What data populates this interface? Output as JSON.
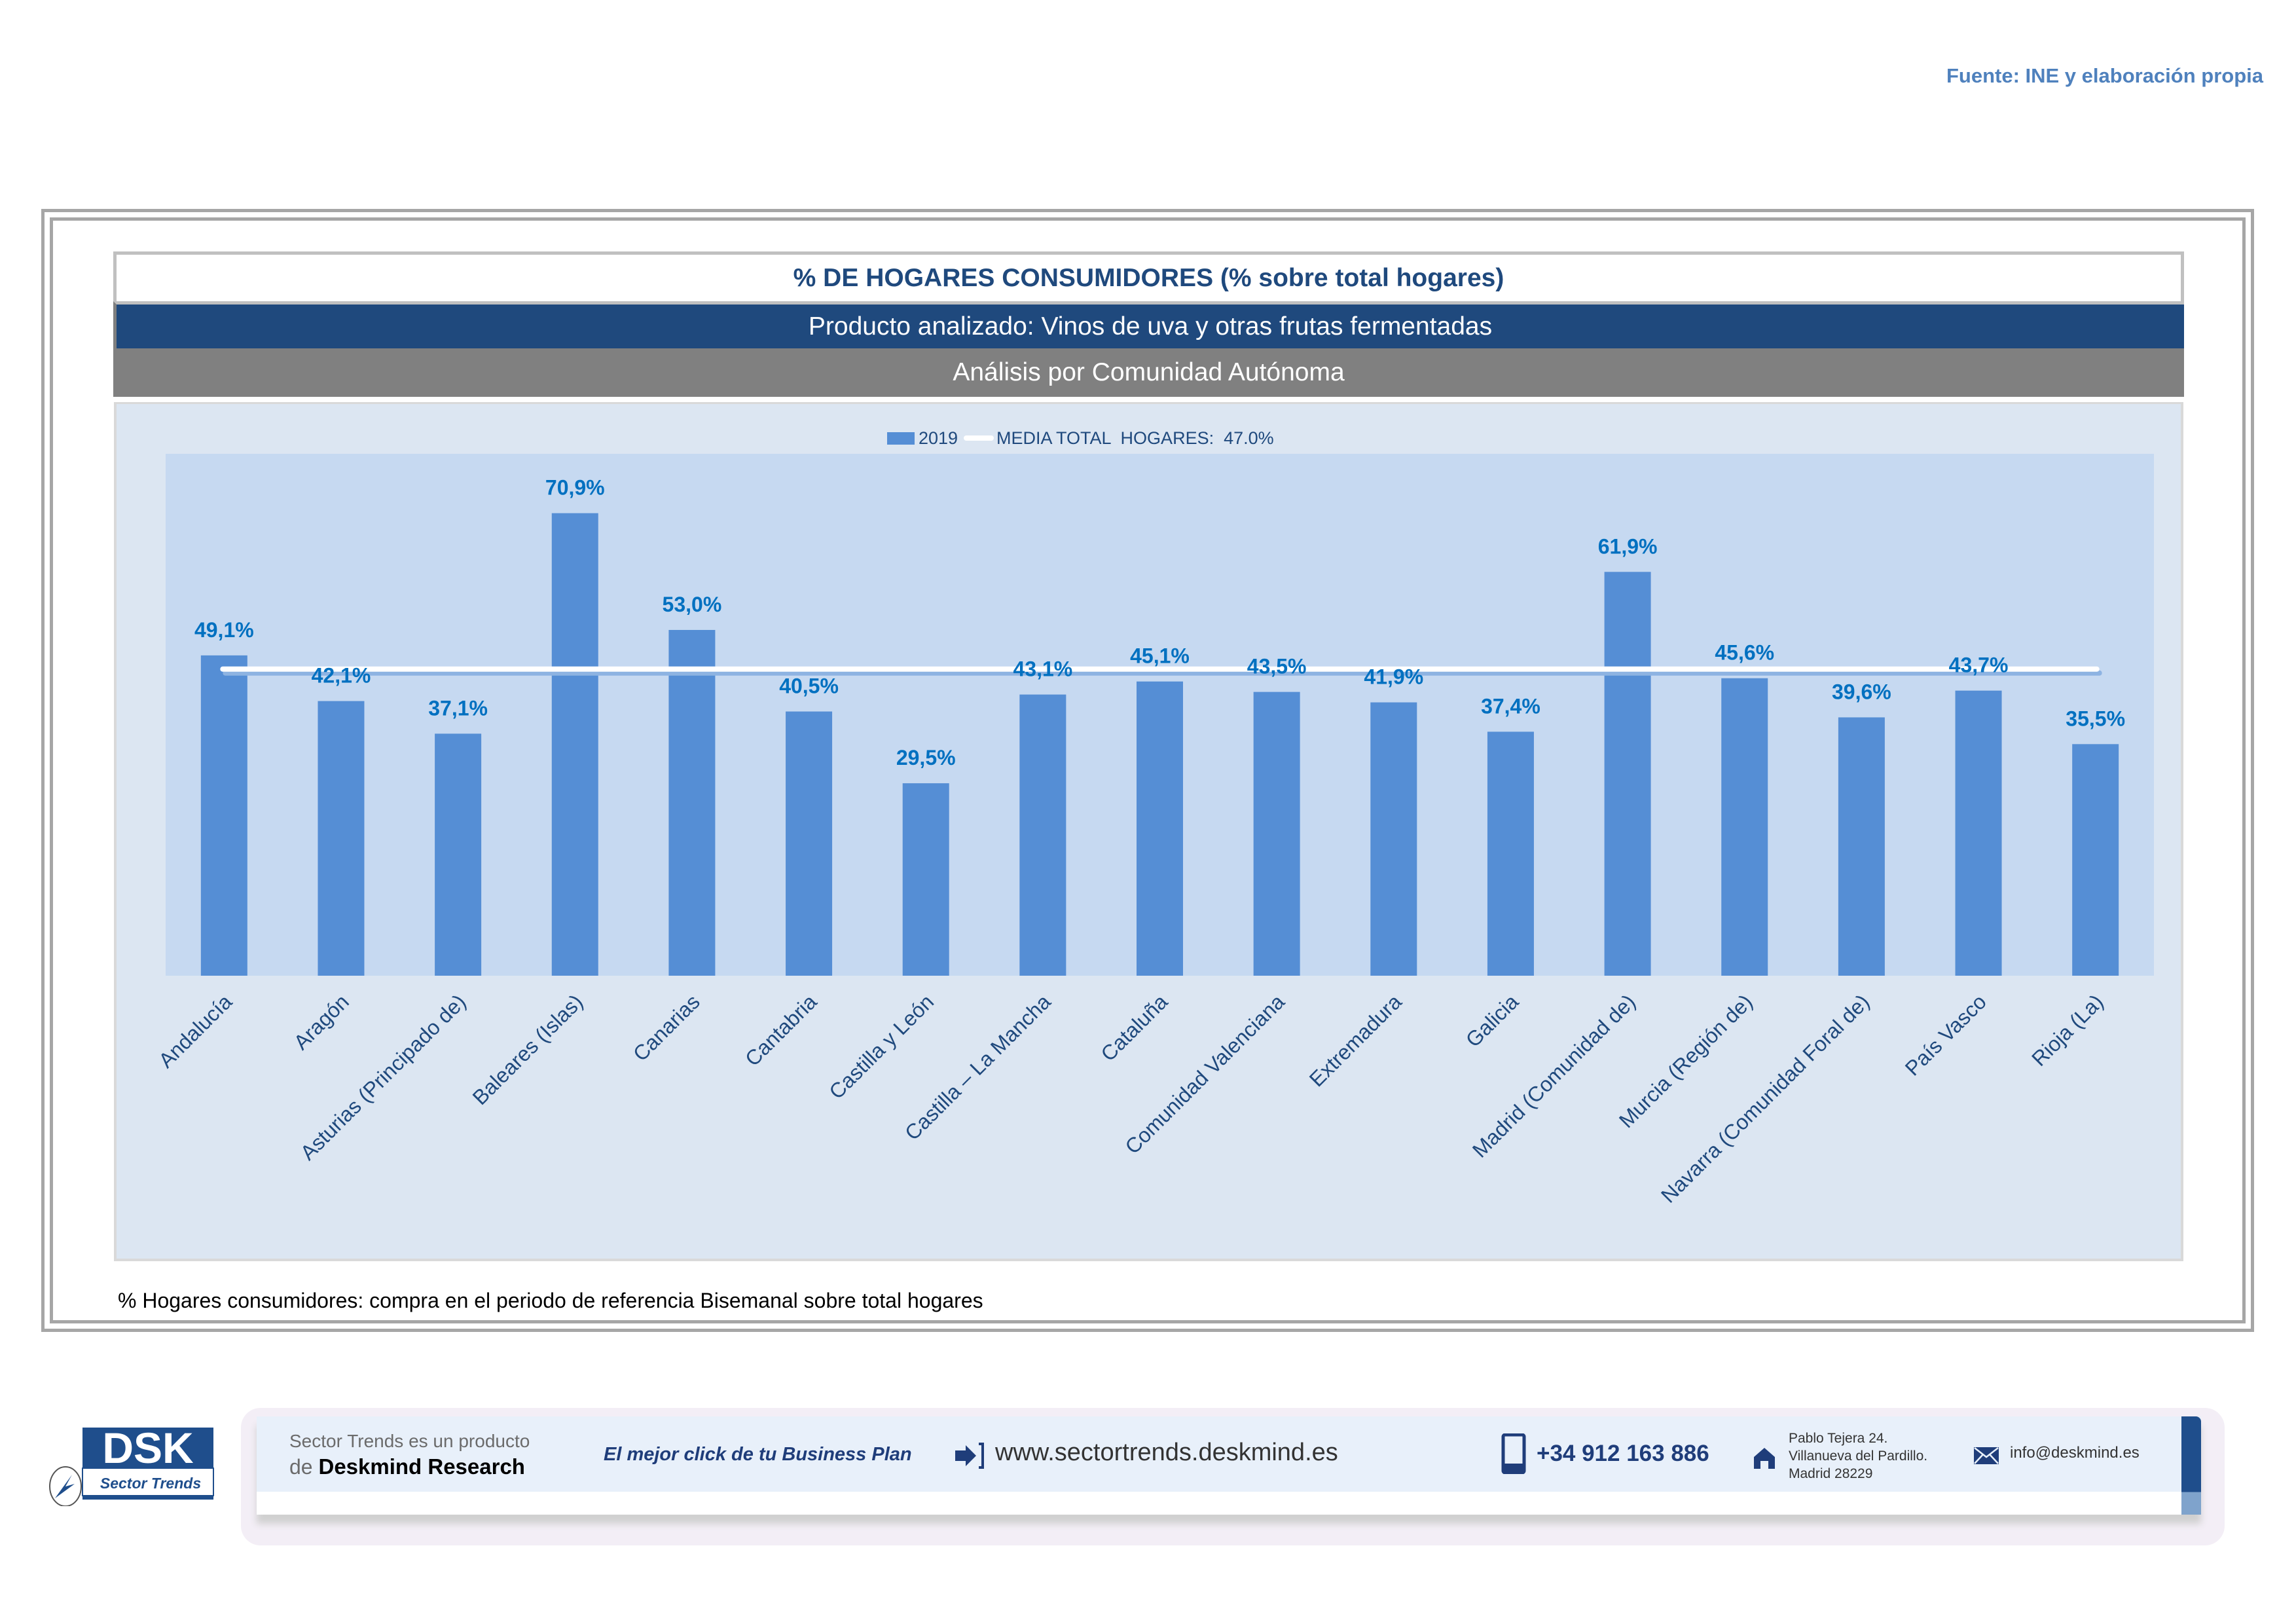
{
  "source": "Fuente: INE y elaboración propia",
  "header": {
    "title": "% DE HOGARES CONSUMIDORES (% sobre total hogares)",
    "product": "Producto analizado: Vinos de uva y otras frutas fermentadas",
    "analysis": "Análisis por Comunidad Autónoma"
  },
  "colors": {
    "bar": "#558ed5",
    "mean_line": "#ffffff",
    "data_label": "#0070c0",
    "axis_label": "#1f497d",
    "plot_bg": "#c6d9f1",
    "chart_bg": "#dce6f2"
  },
  "chart_data": {
    "type": "bar",
    "title": "% DE HOGARES CONSUMIDORES (% sobre total hogares)",
    "xlabel": "",
    "ylabel": "",
    "ylim": [
      0,
      80
    ],
    "grid": false,
    "legend_position": "top-center",
    "legend": [
      "2019",
      "MEDIA TOTAL  HOGARES:  47.0%"
    ],
    "categories": [
      "Andalucía",
      "Aragón",
      "Asturias (Principado de)",
      "Baleares (Islas)",
      "Canarias",
      "Cantabria",
      "Castilla y León",
      "Castilla – La Mancha",
      "Cataluña",
      "Comunidad Valenciana",
      "Extremadura",
      "Galicia",
      "Madrid (Comunidad de)",
      "Murcia (Región de)",
      "Navarra (Comunidad Foral de)",
      "País Vasco",
      "Rioja (La)"
    ],
    "series": [
      {
        "name": "2019",
        "type": "bar",
        "values": [
          49.1,
          42.1,
          37.1,
          70.9,
          53.0,
          40.5,
          29.5,
          43.1,
          45.1,
          43.5,
          41.9,
          37.4,
          61.9,
          45.6,
          39.6,
          43.7,
          35.5
        ],
        "labels": [
          "49,1%",
          "42,1%",
          "37,1%",
          "70,9%",
          "53,0%",
          "40,5%",
          "29,5%",
          "43,1%",
          "45,1%",
          "43,5%",
          "41,9%",
          "37,4%",
          "61,9%",
          "45,6%",
          "39,6%",
          "43,7%",
          "35,5%"
        ]
      },
      {
        "name": "MEDIA TOTAL  HOGARES:  47.0%",
        "type": "line",
        "value": 47.0
      }
    ]
  },
  "footnote": "% Hogares consumidores: compra en el periodo de referencia Bisemanal sobre total hogares",
  "footer": {
    "logo_text": "DSK",
    "logo_sub": "Sector Trends",
    "product_line1": "Sector Trends es un producto",
    "product_line2_prefix": "de",
    "product_line2_brand": "Deskmind Research",
    "slogan": "El mejor click de tu Business Plan",
    "website": "www.sectortrends.deskmind.es",
    "phone": "+34 912 163 886",
    "address_line1": "Pablo Tejera 24.",
    "address_line2": "Villanueva del Pardillo.",
    "address_line3": "Madrid 28229",
    "email": "info@deskmind.es"
  }
}
